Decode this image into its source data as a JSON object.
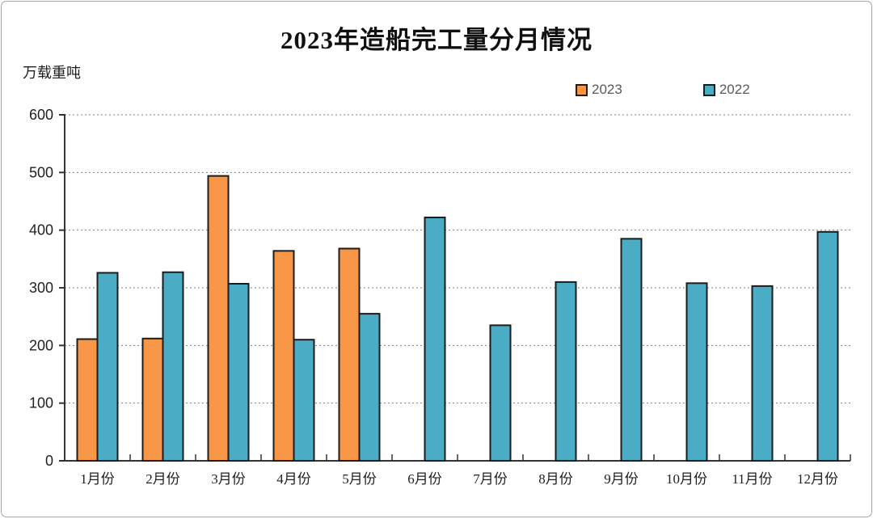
{
  "chart_data": {
    "type": "bar",
    "title": "2023年造船完工量分月情况",
    "unit_label": "万载重吨",
    "categories": [
      "1月份",
      "2月份",
      "3月份",
      "4月份",
      "5月份",
      "6月份",
      "7月份",
      "8月份",
      "9月份",
      "10月份",
      "11月份",
      "12月份"
    ],
    "series": [
      {
        "name": "2023",
        "color": "#F79646",
        "values": [
          211,
          212,
          494,
          364,
          368,
          null,
          null,
          null,
          null,
          null,
          null,
          null
        ]
      },
      {
        "name": "2022",
        "color": "#4BACC6",
        "values": [
          326,
          327,
          307,
          210,
          255,
          422,
          235,
          310,
          385,
          308,
          303,
          397
        ]
      }
    ],
    "ylim": [
      0,
      600
    ],
    "yticks": [
      0,
      100,
      200,
      300,
      400,
      500,
      600
    ],
    "ytick_step": 100,
    "xlabel": "",
    "ylabel": "万载重吨",
    "grid": "horizontal-dashed",
    "legend_position": "top-right",
    "bar_border_color": "#1c1c1c",
    "axis_color": "#333333",
    "grid_color": "#7f7f7f",
    "tick_label_color": "#1f1f1f"
  }
}
